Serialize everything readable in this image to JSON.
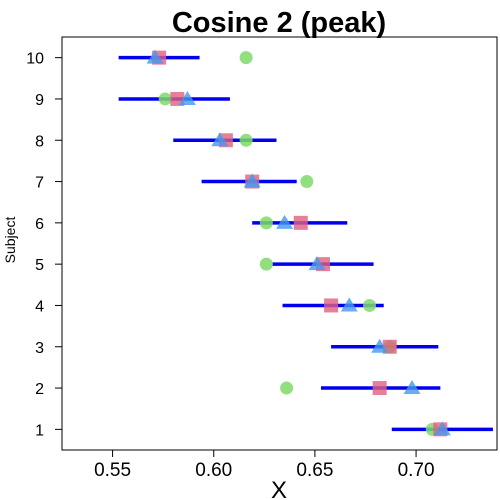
{
  "chart_data": {
    "type": "scatter",
    "title": "Cosine 2 (peak)",
    "xlabel": "X",
    "ylabel": "Subject",
    "xlim": [
      0.525,
      0.74
    ],
    "ylim": [
      0.5,
      10.5
    ],
    "x_ticks": [
      0.55,
      0.6,
      0.65,
      0.7
    ],
    "x_tick_labels": [
      "0.55",
      "0.60",
      "0.65",
      "0.70"
    ],
    "y_ticks": [
      1,
      2,
      3,
      4,
      5,
      6,
      7,
      8,
      9,
      10
    ],
    "y_tick_labels": [
      "1",
      "2",
      "3",
      "4",
      "5",
      "6",
      "7",
      "8",
      "9",
      "10"
    ],
    "grid": false,
    "legend": "none",
    "subjects": [
      1,
      2,
      3,
      4,
      5,
      6,
      7,
      8,
      9,
      10
    ],
    "intervals": {
      "color": "#0000ee",
      "low": [
        0.688,
        0.653,
        0.658,
        0.634,
        0.629,
        0.619,
        0.594,
        0.58,
        0.553,
        0.553
      ],
      "high": [
        0.738,
        0.712,
        0.711,
        0.684,
        0.679,
        0.666,
        0.641,
        0.631,
        0.608,
        0.593
      ]
    },
    "series": [
      {
        "marker": "circle",
        "color": "#7fd96a",
        "values": [
          0.708,
          0.636,
          0.687,
          0.677,
          0.626,
          0.626,
          0.646,
          0.616,
          0.576,
          0.616
        ]
      },
      {
        "marker": "square",
        "color": "#e06080",
        "values": [
          0.712,
          0.682,
          0.687,
          0.658,
          0.654,
          0.643,
          0.619,
          0.606,
          0.582,
          0.573
        ]
      },
      {
        "marker": "triangle",
        "color": "#4499ee",
        "values": [
          0.713,
          0.698,
          0.682,
          0.667,
          0.651,
          0.635,
          0.619,
          0.603,
          0.587,
          0.571
        ]
      }
    ]
  }
}
